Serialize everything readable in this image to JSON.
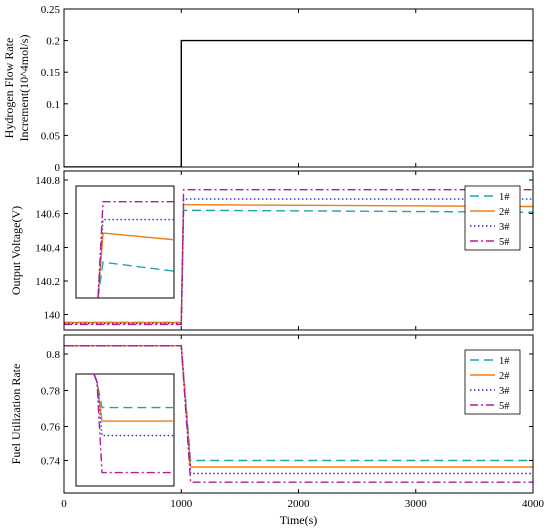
{
  "chart_data": [
    {
      "type": "line",
      "ylabel": [
        "Hydrogen Flow Rate",
        "Increment(10^4mol/s)"
      ],
      "xlim": [
        0,
        4000
      ],
      "ylim": [
        0,
        0.25
      ],
      "yticks": [
        "0",
        "0.05",
        "0.1",
        "0.15",
        "0.2",
        "0.25"
      ],
      "series": [
        {
          "color": "#000000",
          "dash": "solid",
          "x": [
            0,
            1000,
            1000,
            4000
          ],
          "y": [
            0,
            0,
            0.2,
            0.2
          ]
        }
      ]
    },
    {
      "type": "line",
      "ylabel": [
        "Output Voltage(V)"
      ],
      "xlim": [
        0,
        4000
      ],
      "ylim": [
        139.97,
        140.82
      ],
      "yticks": [
        "140",
        "140.2",
        "140.4",
        "140.6",
        "140.8"
      ],
      "legend": {
        "placement": "top-right",
        "entries": [
          "1#",
          "2#",
          "3#",
          "5#"
        ]
      },
      "series": [
        {
          "name": "1#",
          "color": "#1aa6b0",
          "dash": "dashed",
          "x": [
            0,
            1000,
            1020,
            1100,
            4000
          ],
          "y": [
            140.01,
            140.01,
            140.61,
            140.61,
            140.6
          ]
        },
        {
          "name": "2#",
          "color": "#f07d1a",
          "dash": "solid",
          "x": [
            0,
            1000,
            1020,
            1100,
            4000
          ],
          "y": [
            140.01,
            140.01,
            140.64,
            140.64,
            140.63
          ]
        },
        {
          "name": "3#",
          "color": "#2a2ad8",
          "dash": "dotted",
          "x": [
            0,
            1000,
            1020,
            1100,
            4000
          ],
          "y": [
            140.005,
            140.005,
            140.67,
            140.67,
            140.67
          ]
        },
        {
          "name": "5#",
          "color": "#b5179e",
          "dash": "dashdot",
          "x": [
            0,
            1000,
            1020,
            1100,
            4000
          ],
          "y": [
            140.0,
            140.0,
            140.72,
            140.72,
            140.72
          ]
        }
      ],
      "inset": {
        "note": "zoomed step detail",
        "yrange": [
          0,
          1
        ]
      }
    },
    {
      "type": "line",
      "ylabel": [
        "Fuel Utilization Rate"
      ],
      "xlabel": "Time(s)",
      "xlim": [
        0,
        4000
      ],
      "ylim": [
        0.732,
        0.805
      ],
      "xticks": [
        "0",
        "1000",
        "2000",
        "3000",
        "4000"
      ],
      "yticks": [
        "0.74",
        "0.76",
        "0.78",
        "0.8"
      ],
      "legend": {
        "placement": "top-right",
        "entries": [
          "1#",
          "2#",
          "3#",
          "5#"
        ]
      },
      "series": [
        {
          "name": "1#",
          "color": "#1aa6b0",
          "dash": "dashed",
          "x": [
            0,
            1000,
            1080,
            4000
          ],
          "y": [
            0.8,
            0.8,
            0.747,
            0.747
          ]
        },
        {
          "name": "2#",
          "color": "#f07d1a",
          "dash": "solid",
          "x": [
            0,
            1000,
            1080,
            4000
          ],
          "y": [
            0.8,
            0.8,
            0.744,
            0.744
          ]
        },
        {
          "name": "3#",
          "color": "#2a2ad8",
          "dash": "dotted",
          "x": [
            0,
            1000,
            1080,
            4000
          ],
          "y": [
            0.8,
            0.8,
            0.741,
            0.741
          ]
        },
        {
          "name": "5#",
          "color": "#b5179e",
          "dash": "dashdot",
          "x": [
            0,
            1000,
            1080,
            4000
          ],
          "y": [
            0.8,
            0.8,
            0.737,
            0.737
          ]
        }
      ]
    }
  ]
}
